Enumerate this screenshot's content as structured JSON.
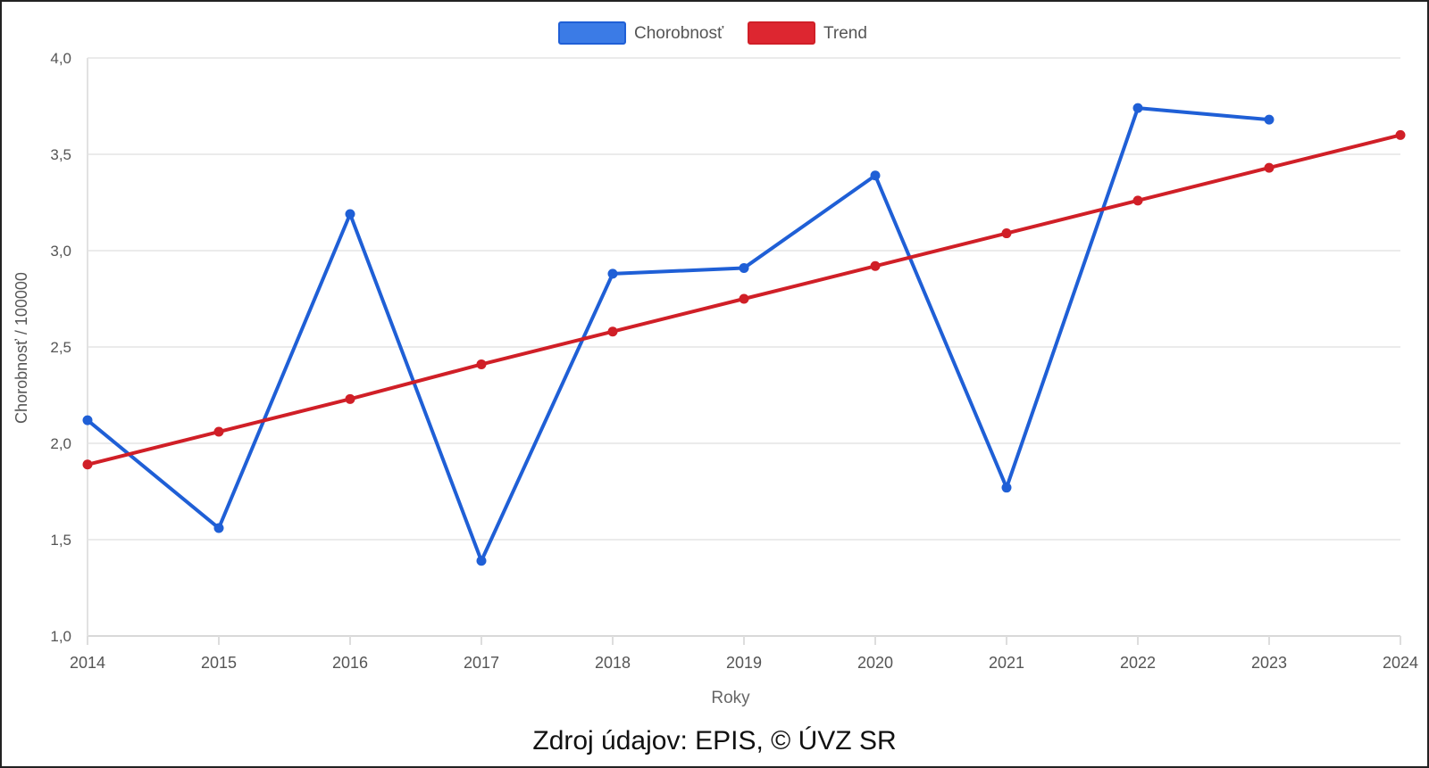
{
  "source": "Zdroj údajov: EPIS, © ÚVZ SR",
  "chart_data": {
    "type": "line",
    "title": "",
    "xlabel": "Roky",
    "ylabel": "Chorobnosť / 100000",
    "categories": [
      "2014",
      "2015",
      "2016",
      "2017",
      "2018",
      "2019",
      "2020",
      "2021",
      "2022",
      "2023",
      "2024"
    ],
    "ylim": [
      1.0,
      4.0
    ],
    "yticks": [
      "1,0",
      "1,5",
      "2,0",
      "2,5",
      "3,0",
      "3,5",
      "4,0"
    ],
    "ytick_values": [
      1.0,
      1.5,
      2.0,
      2.5,
      3.0,
      3.5,
      4.0
    ],
    "grid": true,
    "legend_position": "top-center",
    "series": [
      {
        "name": "Chorobnosť",
        "color": "#1f5fd6",
        "legend_color": "#3b7be6",
        "values": [
          2.12,
          1.56,
          3.19,
          1.39,
          2.88,
          2.91,
          3.39,
          1.77,
          3.74,
          3.68,
          null
        ]
      },
      {
        "name": "Trend",
        "color": "#d01f27",
        "legend_color": "#dd2630",
        "values": [
          1.89,
          2.06,
          2.23,
          2.41,
          2.58,
          2.75,
          2.92,
          3.09,
          3.26,
          3.43,
          3.6
        ]
      }
    ]
  }
}
